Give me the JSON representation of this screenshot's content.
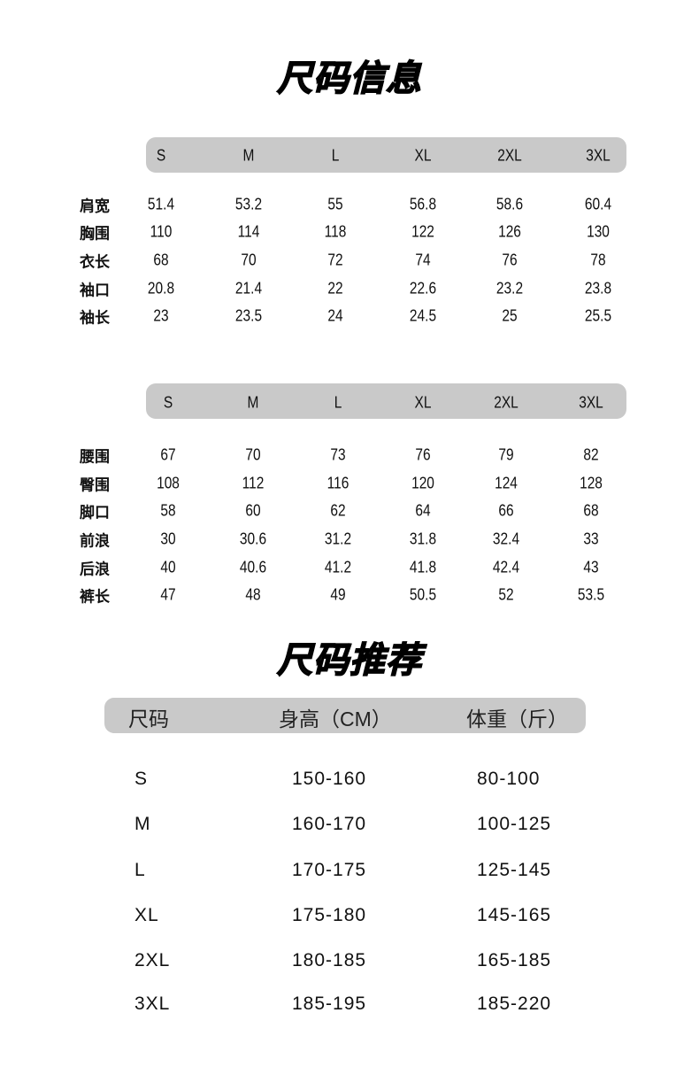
{
  "size_info": {
    "title": "尺码信息",
    "top_table": {
      "sizes": [
        "S",
        "M",
        "L",
        "XL",
        "2XL",
        "3XL"
      ],
      "rows": [
        {
          "label": "肩宽",
          "values": [
            "51.4",
            "53.2",
            "55",
            "56.8",
            "58.6",
            "60.4"
          ]
        },
        {
          "label": "胸围",
          "values": [
            "110",
            "114",
            "118",
            "122",
            "126",
            "130"
          ]
        },
        {
          "label": "衣长",
          "values": [
            "68",
            "70",
            "72",
            "74",
            "76",
            "78"
          ]
        },
        {
          "label": "袖口",
          "values": [
            "20.8",
            "21.4",
            "22",
            "22.6",
            "23.2",
            "23.8"
          ]
        },
        {
          "label": "袖长",
          "values": [
            "23",
            "23.5",
            "24",
            "24.5",
            "25",
            "25.5"
          ]
        }
      ]
    },
    "bottom_table": {
      "sizes": [
        "S",
        "M",
        "L",
        "XL",
        "2XL",
        "3XL"
      ],
      "rows": [
        {
          "label": "腰围",
          "values": [
            "67",
            "70",
            "73",
            "76",
            "79",
            "82"
          ]
        },
        {
          "label": "臀围",
          "values": [
            "108",
            "112",
            "116",
            "120",
            "124",
            "128"
          ]
        },
        {
          "label": "脚口",
          "values": [
            "58",
            "60",
            "62",
            "64",
            "66",
            "68"
          ]
        },
        {
          "label": "前浪",
          "values": [
            "30",
            "30.6",
            "31.2",
            "31.8",
            "32.4",
            "33"
          ]
        },
        {
          "label": "后浪",
          "values": [
            "40",
            "40.6",
            "41.2",
            "41.8",
            "42.4",
            "43"
          ]
        },
        {
          "label": "裤长",
          "values": [
            "47",
            "48",
            "49",
            "50.5",
            "52",
            "53.5"
          ]
        }
      ]
    }
  },
  "size_recommendation": {
    "title": "尺码推荐",
    "headers": [
      "尺码",
      "身高（CM）",
      "体重（斤）"
    ],
    "rows": [
      [
        "S",
        "150-160",
        "80-100"
      ],
      [
        "M",
        "160-170",
        "100-125"
      ],
      [
        "L",
        "170-175",
        "125-145"
      ],
      [
        "XL",
        "175-180",
        "145-165"
      ],
      [
        "2XL",
        "180-185",
        "165-185"
      ],
      [
        "3XL",
        "185-195",
        "185-220"
      ]
    ]
  }
}
